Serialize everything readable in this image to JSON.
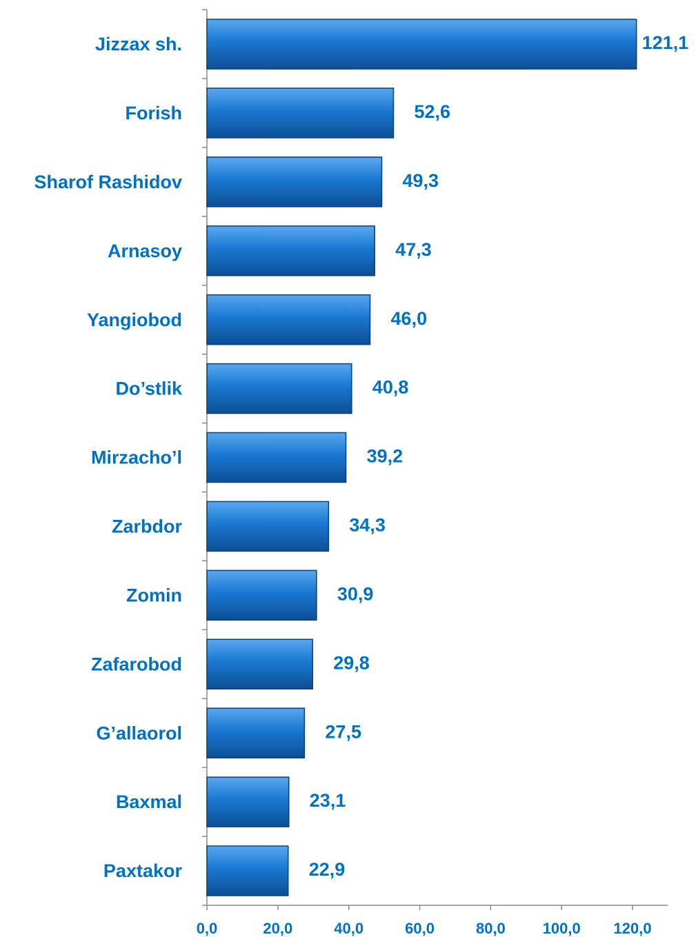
{
  "chart_data": {
    "type": "hbar",
    "categories": [
      "Jizzax sh.",
      "Forish",
      "Sharof Rashidov",
      "Arnasoy",
      "Yangiobod",
      "Do’stlik",
      "Mirzacho’l",
      "Zarbdor",
      "Zomin",
      "Zafarobod",
      "G’allaorol",
      "Baxmal",
      "Paxtakor"
    ],
    "values": [
      121.1,
      52.6,
      49.3,
      47.3,
      46.0,
      40.8,
      39.2,
      34.3,
      30.9,
      29.8,
      27.5,
      23.1,
      22.9
    ],
    "value_labels": [
      "121,1",
      "52,6",
      "49,3",
      "47,3",
      "46,0",
      "40,8",
      "39,2",
      "34,3",
      "30,9",
      "29,8",
      "27,5",
      "23,1",
      "22,9"
    ],
    "color": "#1a78d2",
    "xlim": [
      0,
      130
    ],
    "xticks": [
      {
        "value": 0,
        "label": "0,0"
      },
      {
        "value": 20,
        "label": "20,0"
      },
      {
        "value": 40,
        "label": "40,0"
      },
      {
        "value": 60,
        "label": "60,0"
      },
      {
        "value": 80,
        "label": "80,0"
      },
      {
        "value": 100,
        "label": "100,0"
      },
      {
        "value": 120,
        "label": "120,0"
      }
    ]
  }
}
